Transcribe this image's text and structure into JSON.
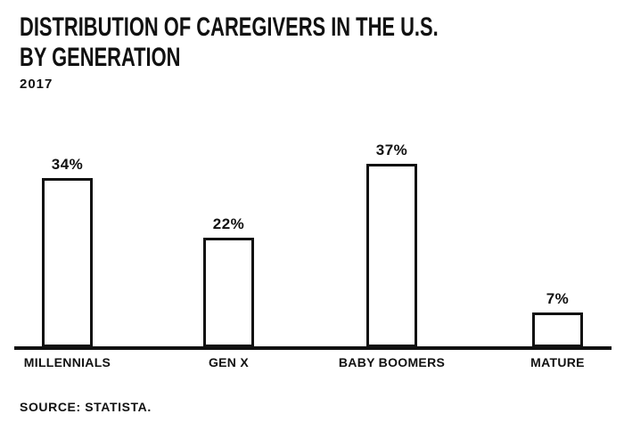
{
  "header": {
    "title_line1": "DISTRIBUTION OF CAREGIVERS IN THE U.S.",
    "title_line2": "BY GENERATION",
    "year": "2017"
  },
  "footer": {
    "source": "SOURCE: STATISTA."
  },
  "colors": {
    "background": "#ffffff",
    "text": "#111111",
    "bar_fill": "#ffffff",
    "bar_border": "#111111",
    "axis": "#111111"
  },
  "chart_data": {
    "type": "bar",
    "title": "DISTRIBUTION OF CAREGIVERS IN THE U.S. BY GENERATION",
    "subtitle": "2017",
    "categories": [
      "MILLENNIALS",
      "GEN X",
      "BABY BOOMERS",
      "MATURE"
    ],
    "values": [
      34,
      22,
      37,
      7
    ],
    "value_labels": [
      "34%",
      "22%",
      "37%",
      "7%"
    ],
    "unit": "%",
    "xlabel": "",
    "ylabel": "",
    "ylim": [
      0,
      40
    ],
    "grid": false,
    "legend": false,
    "y_axis_shown": false,
    "source": "STATISTA"
  }
}
